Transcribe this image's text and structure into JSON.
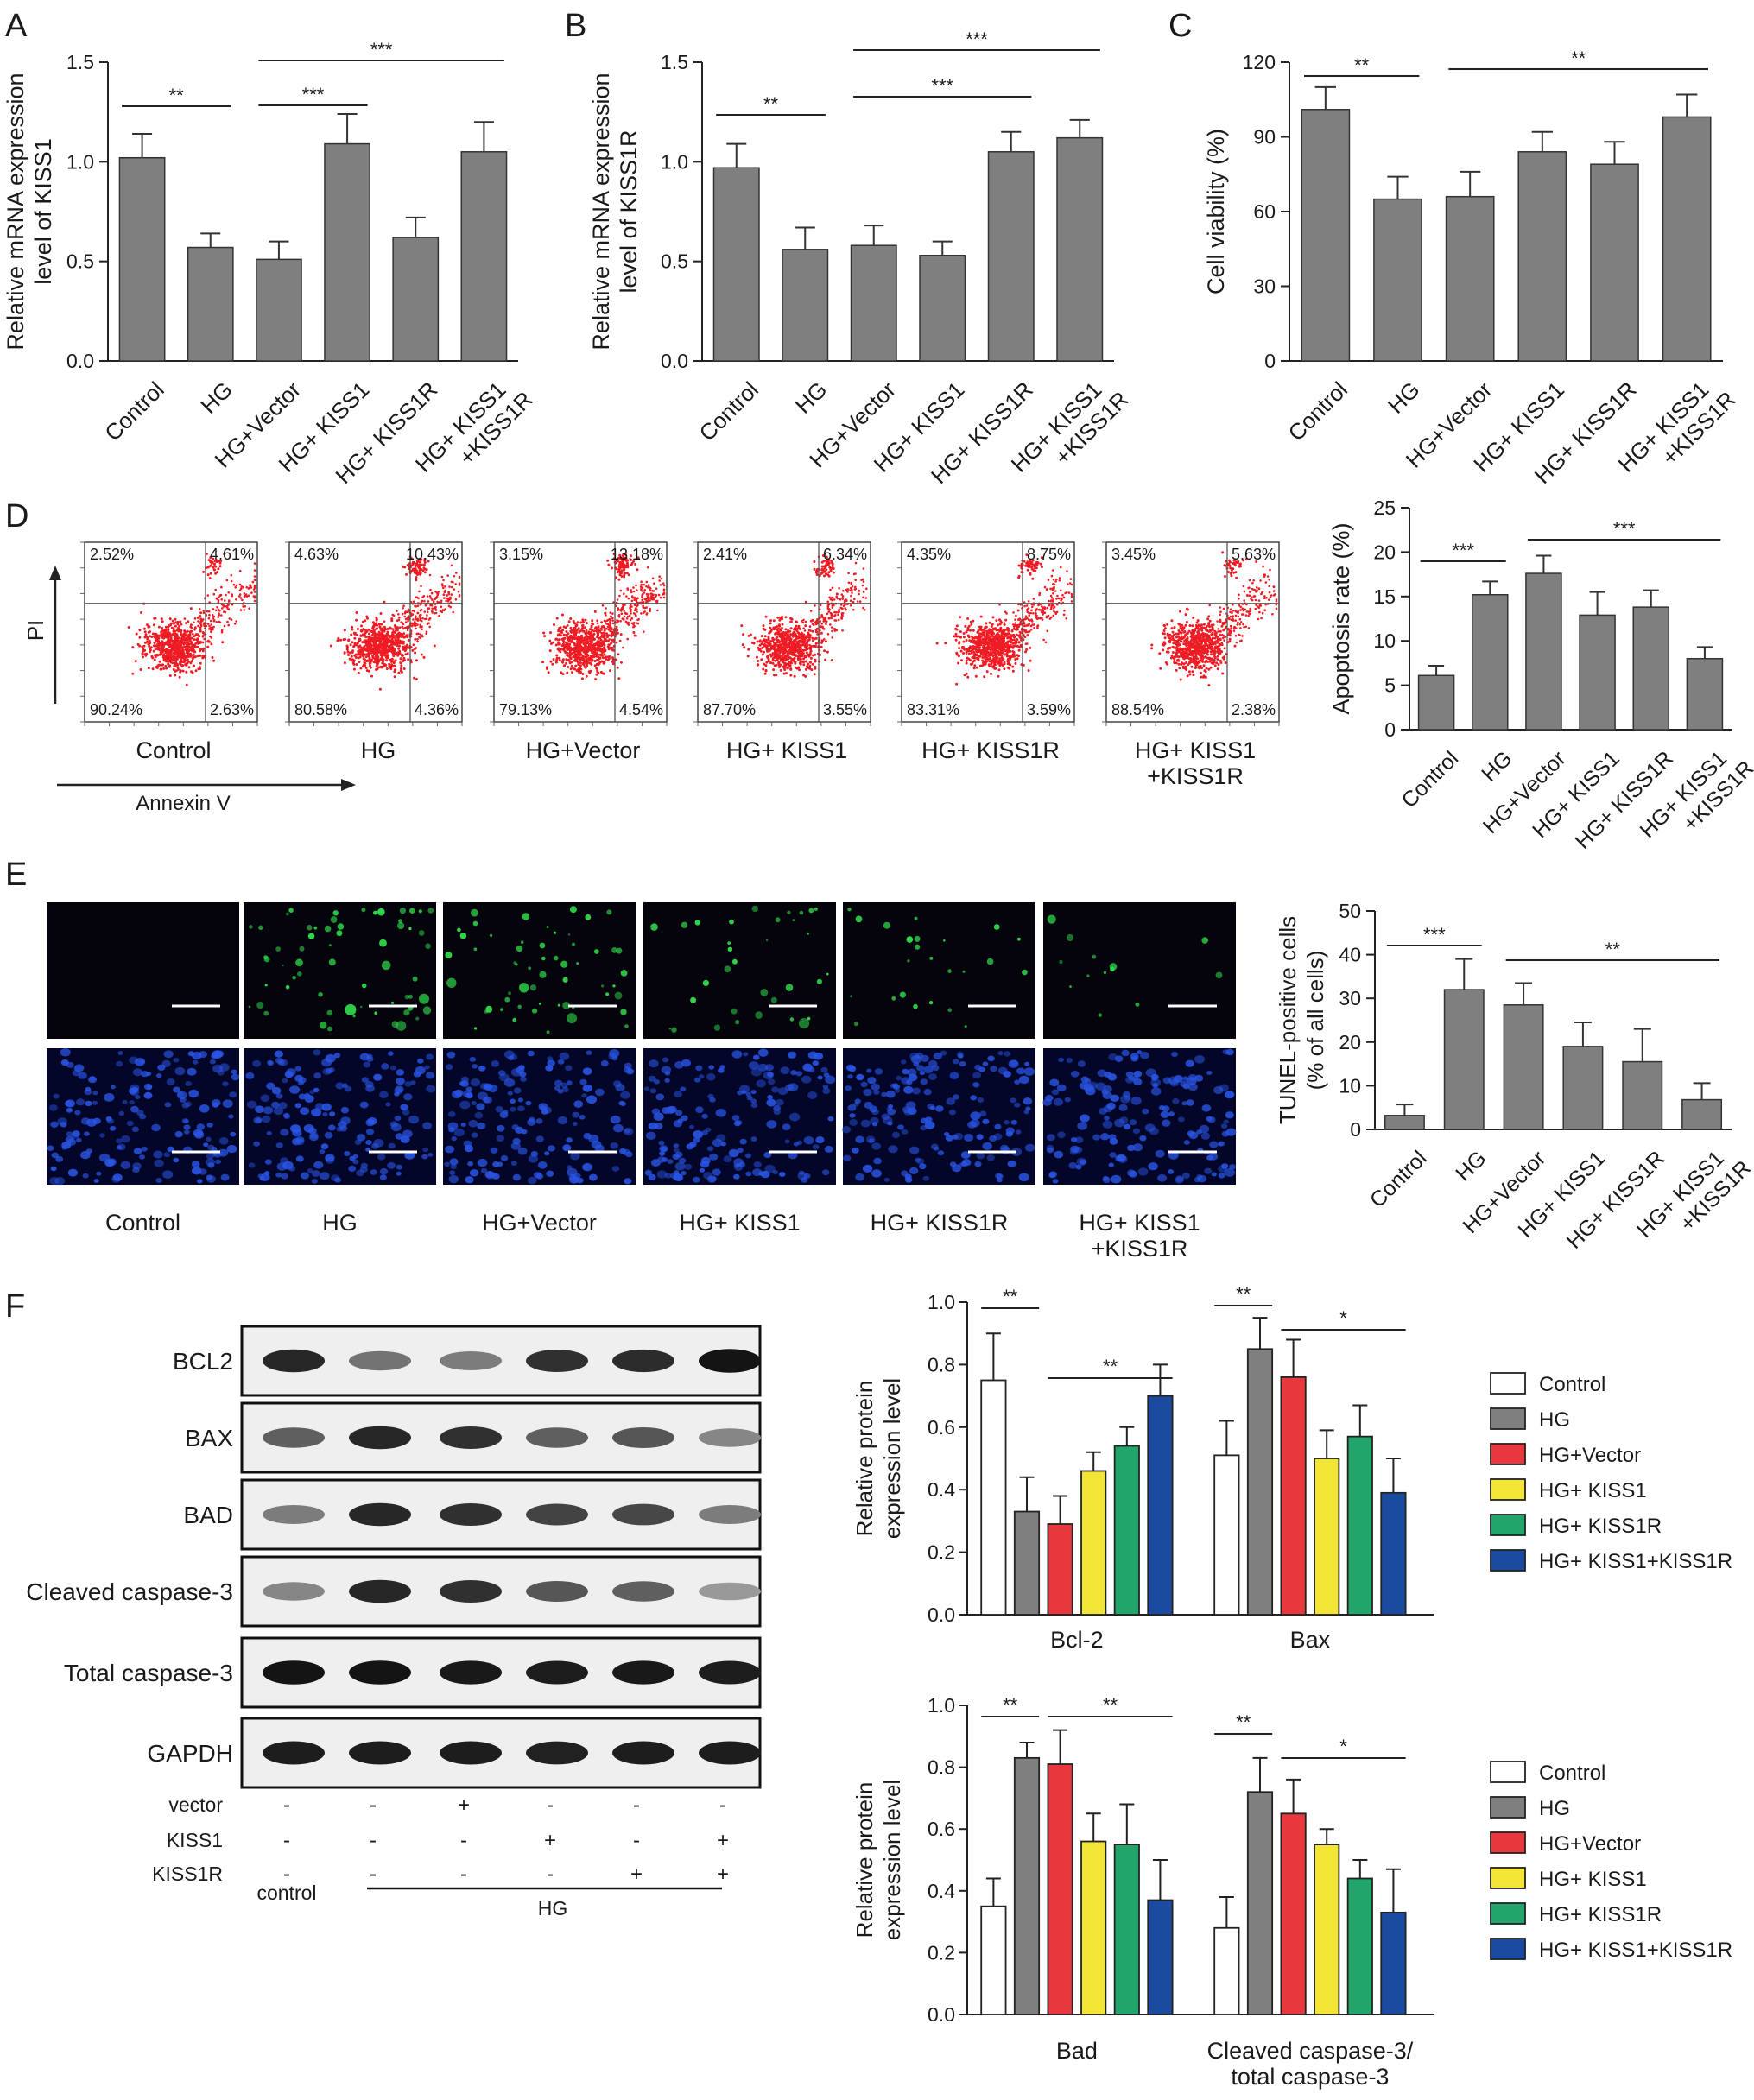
{
  "colors": {
    "gray_bar": "#7f7f7f",
    "control": "#ffffff",
    "hg": "#7f7f7f",
    "hg_vector": "#e8383d",
    "hg_kiss1": "#f2e536",
    "hg_kiss1r": "#21a56b",
    "hg_kiss1_kiss1r": "#1b4ba0",
    "flow_dots": "#ee1c24",
    "tunel_green": "#2fd94a",
    "dapi_blue": "#2a55e6"
  },
  "panels": {
    "A": "A",
    "B": "B",
    "C": "C",
    "D": "D",
    "E": "E",
    "F": "F"
  },
  "chart_data": [
    {
      "id": "A",
      "type": "bar",
      "categories": [
        "Control",
        "HG",
        "HG+Vector",
        "HG+ KISS1",
        "HG+ KISS1R",
        "HG+ KISS1\n+KISS1R"
      ],
      "values": [
        1.02,
        0.57,
        0.51,
        1.09,
        0.62,
        1.05
      ],
      "errors": [
        0.12,
        0.07,
        0.09,
        0.15,
        0.1,
        0.15
      ],
      "ylabel": "Relative mRNA expression\nlevel of KISS1",
      "ylim": [
        0,
        1.5
      ],
      "yticks": [
        "0.0",
        "0.5",
        "1.0",
        "1.5"
      ],
      "brackets": [
        {
          "from": 0,
          "to": 1,
          "label": "**"
        },
        {
          "from": 2,
          "to": 3,
          "label": "***"
        },
        {
          "from": 2,
          "to": 5,
          "label": "***"
        }
      ]
    },
    {
      "id": "B",
      "type": "bar",
      "categories": [
        "Control",
        "HG",
        "HG+Vector",
        "HG+ KISS1",
        "HG+ KISS1R",
        "HG+ KISS1\n+KISS1R"
      ],
      "values": [
        0.97,
        0.56,
        0.58,
        0.53,
        1.05,
        1.12
      ],
      "errors": [
        0.12,
        0.11,
        0.1,
        0.07,
        0.1,
        0.09
      ],
      "ylabel": "Relative mRNA expression\nlevel of KISS1R",
      "ylim": [
        0,
        1.5
      ],
      "yticks": [
        "0.0",
        "0.5",
        "1.0",
        "1.5"
      ],
      "brackets": [
        {
          "from": 0,
          "to": 1,
          "label": "**"
        },
        {
          "from": 2,
          "to": 4,
          "label": "***"
        },
        {
          "from": 2,
          "to": 5,
          "label": "***"
        }
      ]
    },
    {
      "id": "C",
      "type": "bar",
      "categories": [
        "Control",
        "HG",
        "HG+Vector",
        "HG+ KISS1",
        "HG+ KISS1R",
        "HG+ KISS1\n+KISS1R"
      ],
      "values": [
        101,
        65,
        66,
        84,
        79,
        98
      ],
      "errors": [
        9,
        9,
        10,
        8,
        9,
        9
      ],
      "ylabel": "Cell viability (%)",
      "ylim": [
        0,
        120
      ],
      "yticks": [
        "0",
        "30",
        "60",
        "90",
        "120"
      ],
      "brackets": [
        {
          "from": 0,
          "to": 1,
          "label": "**"
        },
        {
          "from": 2,
          "to": 5,
          "label": "**"
        }
      ]
    },
    {
      "id": "D",
      "type": "bar",
      "categories": [
        "Control",
        "HG",
        "HG+Vector",
        "HG+ KISS1",
        "HG+ KISS1R",
        "HG+ KISS1\n+KISS1R"
      ],
      "values": [
        6.1,
        15.2,
        17.6,
        12.9,
        13.8,
        8.0
      ],
      "errors": [
        1.1,
        1.5,
        2.0,
        2.6,
        1.9,
        1.3
      ],
      "ylabel": "Apoptosis rate (%)",
      "ylim": [
        0,
        25
      ],
      "yticks": [
        "0",
        "5",
        "10",
        "15",
        "20",
        "25"
      ],
      "brackets": [
        {
          "from": 0,
          "to": 1,
          "label": "***"
        },
        {
          "from": 2,
          "to": 5,
          "label": "***"
        }
      ]
    },
    {
      "id": "E",
      "type": "bar",
      "categories": [
        "Control",
        "HG",
        "HG+Vector",
        "HG+ KISS1",
        "HG+ KISS1R",
        "HG+ KISS1\n+KISS1R"
      ],
      "values": [
        3.2,
        32.0,
        28.5,
        19.0,
        15.5,
        6.8
      ],
      "errors": [
        2.5,
        7.0,
        5.0,
        5.5,
        7.5,
        3.8
      ],
      "ylabel": "TUNEL-positive cells\n(% of all cells)",
      "ylim": [
        0,
        50
      ],
      "yticks": [
        "0",
        "10",
        "20",
        "30",
        "40",
        "50"
      ],
      "brackets": [
        {
          "from": 0,
          "to": 1,
          "label": "***"
        },
        {
          "from": 2,
          "to": 5,
          "label": "**"
        }
      ]
    },
    {
      "id": "F1",
      "type": "bar",
      "groups": [
        "Bcl-2",
        "Bax"
      ],
      "series": [
        {
          "name": "Control",
          "values": [
            0.75,
            0.51
          ],
          "errors": [
            0.15,
            0.11
          ]
        },
        {
          "name": "HG",
          "values": [
            0.33,
            0.85
          ],
          "errors": [
            0.11,
            0.1
          ]
        },
        {
          "name": "HG+Vector",
          "values": [
            0.29,
            0.76
          ],
          "errors": [
            0.09,
            0.12
          ]
        },
        {
          "name": "HG+ KISS1",
          "values": [
            0.46,
            0.5
          ],
          "errors": [
            0.06,
            0.09
          ]
        },
        {
          "name": "HG+ KISS1R",
          "values": [
            0.54,
            0.57
          ],
          "errors": [
            0.06,
            0.1
          ]
        },
        {
          "name": "HG+ KISS1+KISS1R",
          "values": [
            0.7,
            0.39
          ],
          "errors": [
            0.1,
            0.11
          ]
        }
      ],
      "ylabel": "Relative protein\nexpression level",
      "ylim": [
        0,
        1.0
      ],
      "yticks": [
        "0.0",
        "0.2",
        "0.4",
        "0.6",
        "0.8",
        "1.0"
      ],
      "brackets": [
        {
          "group": 0,
          "from": 0,
          "to": 1,
          "label": "**"
        },
        {
          "group": 0,
          "from": 2,
          "to": 5,
          "label": "**"
        },
        {
          "group": 1,
          "from": 0,
          "to": 1,
          "label": "**"
        },
        {
          "group": 1,
          "from": 2,
          "to": 5,
          "label": "*"
        }
      ]
    },
    {
      "id": "F2",
      "type": "bar",
      "groups": [
        "Bad",
        "Cleaved caspase-3/\ntotal caspase-3"
      ],
      "series": [
        {
          "name": "Control",
          "values": [
            0.35,
            0.28
          ],
          "errors": [
            0.09,
            0.1
          ]
        },
        {
          "name": "HG",
          "values": [
            0.83,
            0.72
          ],
          "errors": [
            0.05,
            0.11
          ]
        },
        {
          "name": "HG+Vector",
          "values": [
            0.81,
            0.65
          ],
          "errors": [
            0.11,
            0.11
          ]
        },
        {
          "name": "HG+ KISS1",
          "values": [
            0.56,
            0.55
          ],
          "errors": [
            0.09,
            0.05
          ]
        },
        {
          "name": "HG+ KISS1R",
          "values": [
            0.55,
            0.44
          ],
          "errors": [
            0.13,
            0.06
          ]
        },
        {
          "name": "HG+ KISS1+KISS1R",
          "values": [
            0.37,
            0.33
          ],
          "errors": [
            0.13,
            0.14
          ]
        }
      ],
      "ylabel": "Relative protein\nexpression level",
      "ylim": [
        0,
        1.0
      ],
      "yticks": [
        "0.0",
        "0.2",
        "0.4",
        "0.6",
        "0.8",
        "1.0"
      ],
      "brackets": [
        {
          "group": 0,
          "from": 0,
          "to": 1,
          "label": "**"
        },
        {
          "group": 0,
          "from": 2,
          "to": 5,
          "label": "**"
        },
        {
          "group": 1,
          "from": 0,
          "to": 1,
          "label": "**"
        },
        {
          "group": 1,
          "from": 2,
          "to": 5,
          "label": "*"
        }
      ]
    }
  ],
  "flow": {
    "y_axis_label": "PI",
    "x_axis_label": "Annexin V",
    "plots": [
      {
        "caption": "Control",
        "q1": "2.52%",
        "q2": "4.61%",
        "q3": "90.24%",
        "q4": "2.63%",
        "apoptotic": 0.07
      },
      {
        "caption": "HG",
        "q1": "4.63%",
        "q2": "10.43%",
        "q3": "80.58%",
        "q4": "4.36%",
        "apoptotic": 0.15
      },
      {
        "caption": "HG+Vector",
        "q1": "3.15%",
        "q2": "13.18%",
        "q3": "79.13%",
        "q4": "4.54%",
        "apoptotic": 0.18
      },
      {
        "caption": "HG+ KISS1",
        "q1": "2.41%",
        "q2": "6.34%",
        "q3": "87.70%",
        "q4": "3.55%",
        "apoptotic": 0.1
      },
      {
        "caption": "HG+ KISS1R",
        "q1": "4.35%",
        "q2": "8.75%",
        "q3": "83.31%",
        "q4": "3.59%",
        "apoptotic": 0.12
      },
      {
        "caption": "HG+ KISS1\n+KISS1R",
        "q1": "3.45%",
        "q2": "5.63%",
        "q3": "88.54%",
        "q4": "2.38%",
        "apoptotic": 0.08
      }
    ]
  },
  "microscopy": {
    "captions": [
      "Control",
      "HG",
      "HG+Vector",
      "HG+ KISS1",
      "HG+ KISS1R",
      "HG+ KISS1\n+KISS1R"
    ],
    "tunel_density": [
      0,
      0.55,
      0.5,
      0.3,
      0.22,
      0.12
    ]
  },
  "western": {
    "bands": [
      {
        "label": "BCL2",
        "intensity": [
          0.85,
          0.45,
          0.4,
          0.8,
          0.82,
          0.95
        ]
      },
      {
        "label": "BAX",
        "intensity": [
          0.55,
          0.85,
          0.8,
          0.55,
          0.6,
          0.35
        ]
      },
      {
        "label": "BAD",
        "intensity": [
          0.4,
          0.85,
          0.8,
          0.7,
          0.68,
          0.4
        ]
      },
      {
        "label": "Cleaved caspase-3",
        "intensity": [
          0.35,
          0.85,
          0.8,
          0.6,
          0.55,
          0.25
        ]
      },
      {
        "label": "Total caspase-3",
        "intensity": [
          0.95,
          0.95,
          0.92,
          0.9,
          0.92,
          0.9
        ]
      },
      {
        "label": "GAPDH",
        "intensity": [
          0.9,
          0.9,
          0.9,
          0.88,
          0.9,
          0.9
        ]
      }
    ],
    "treatment_rows": [
      {
        "label": "vector",
        "marks": [
          "-",
          "-",
          "+",
          "-",
          "-",
          "-"
        ]
      },
      {
        "label": "KISS1",
        "marks": [
          "-",
          "-",
          "-",
          "+",
          "-",
          "+"
        ]
      },
      {
        "label": "KISS1R",
        "marks": [
          "-",
          "-",
          "-",
          "-",
          "+",
          "+"
        ]
      }
    ],
    "group_labels": {
      "control": "control",
      "hg": "HG"
    }
  }
}
